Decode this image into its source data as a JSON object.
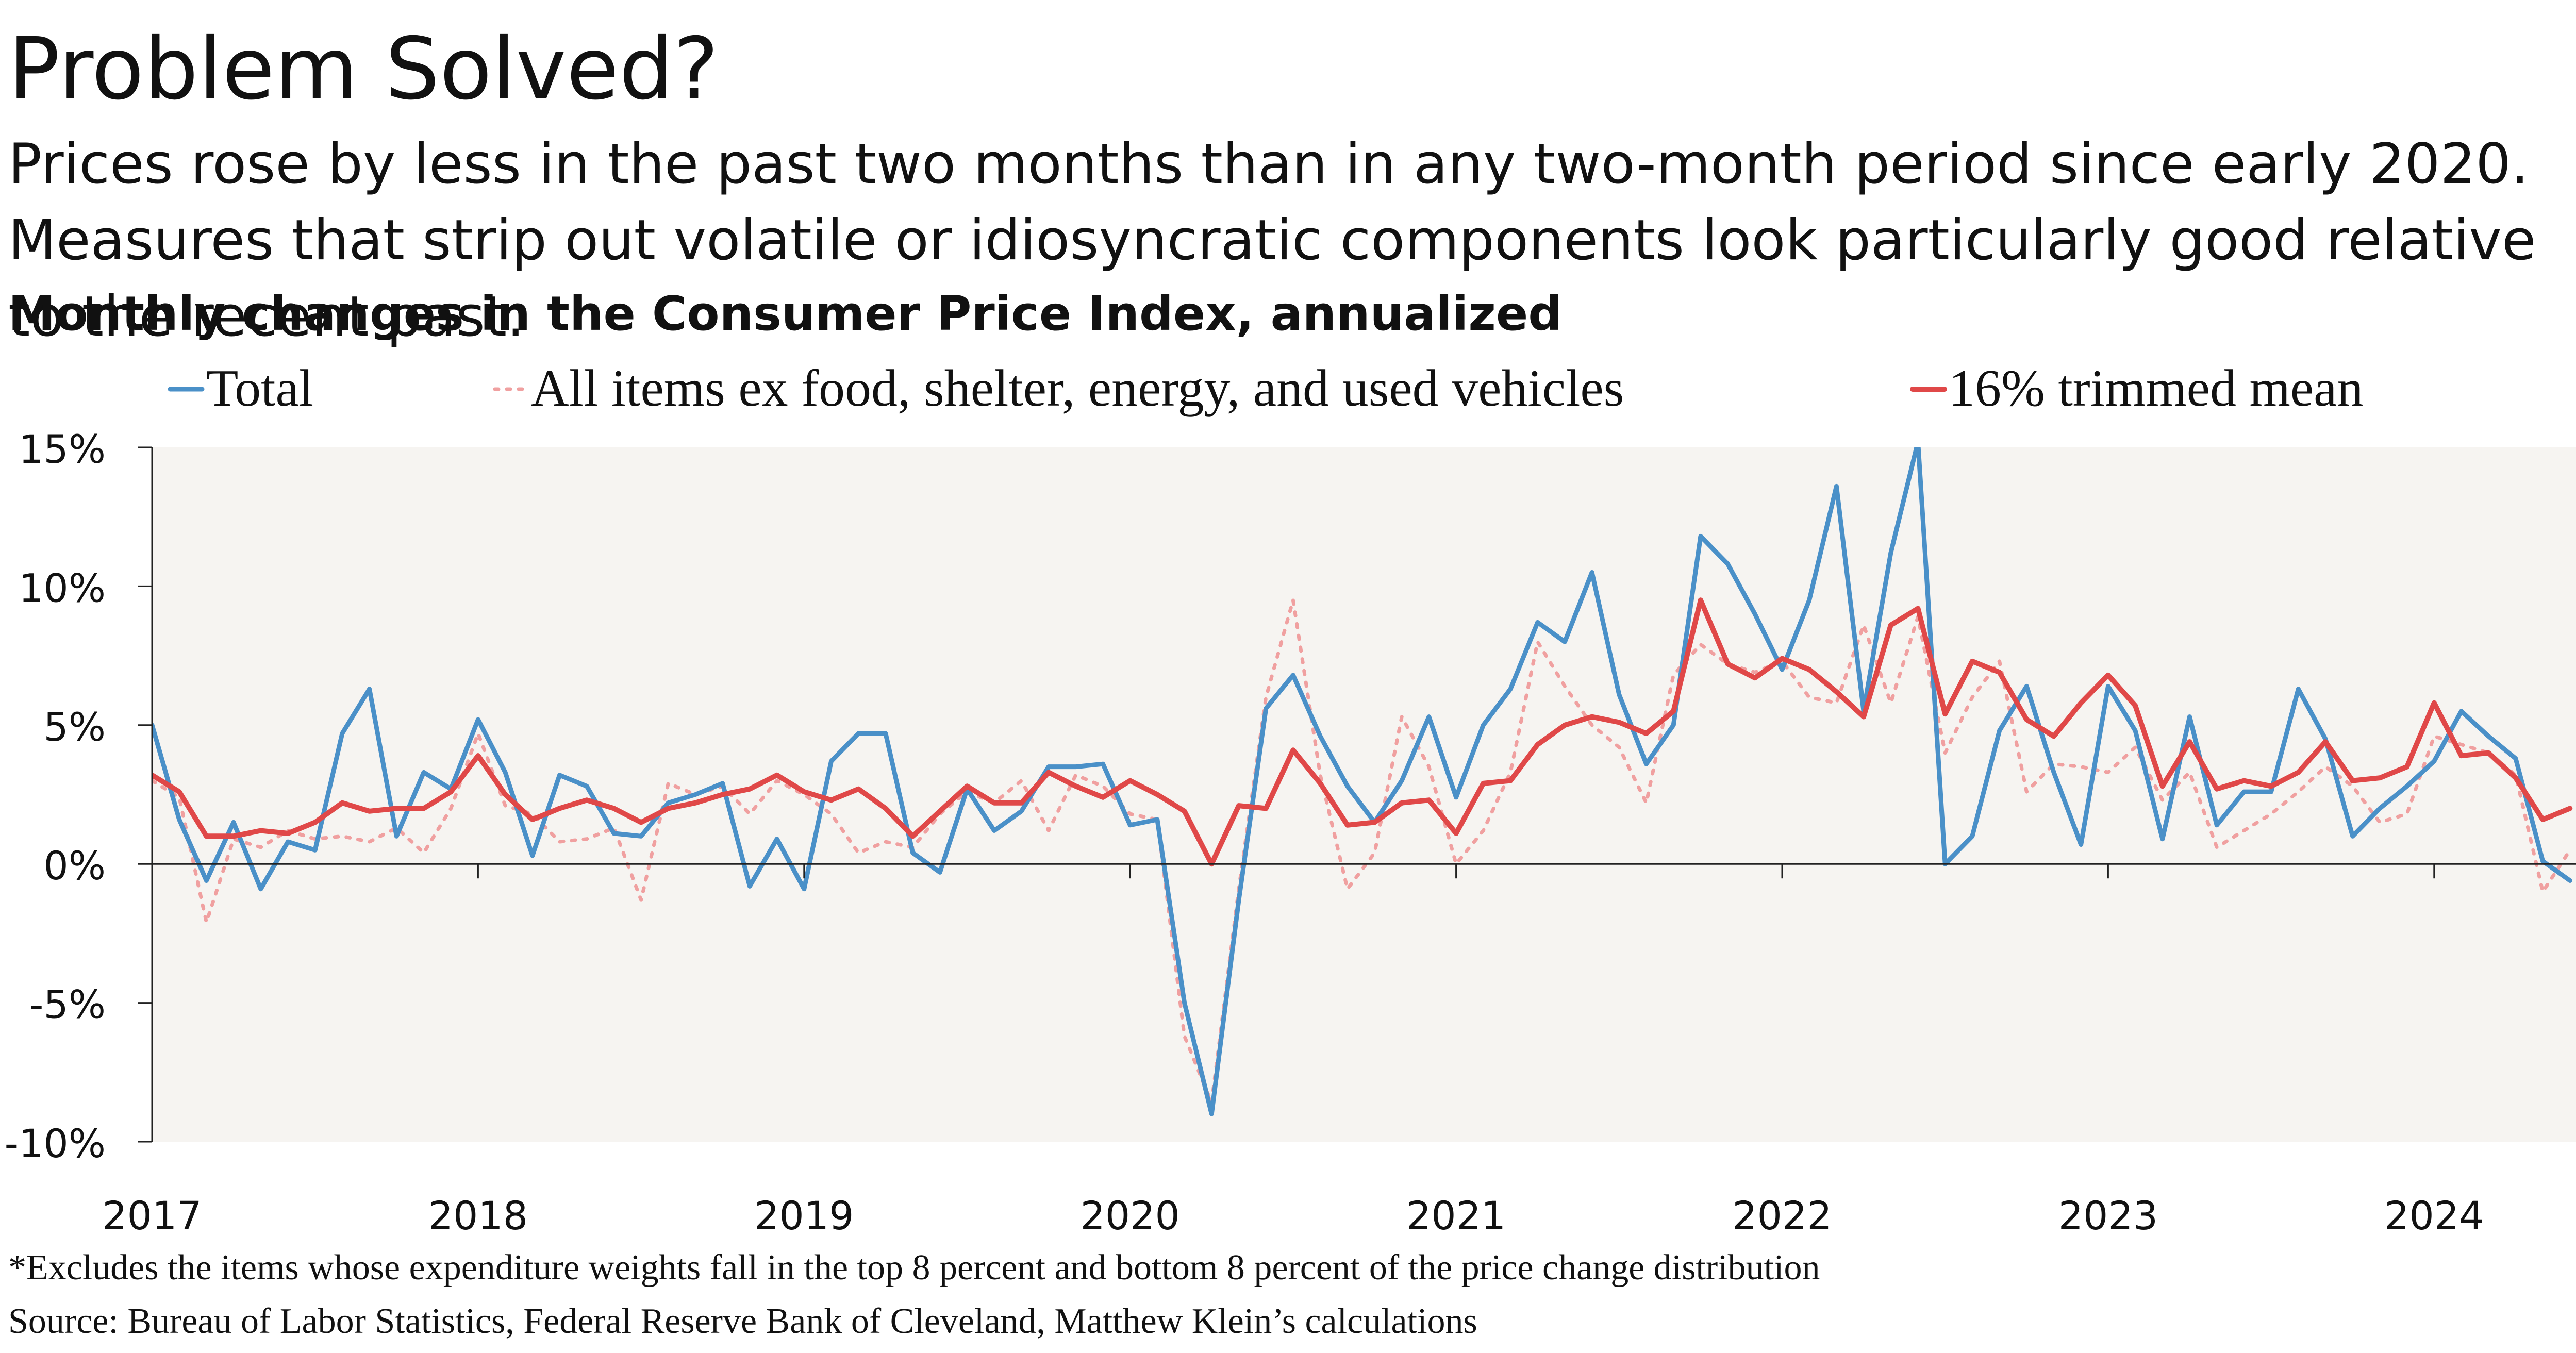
{
  "title": "Problem Solved?",
  "subtitle": "Prices rose by less in the past two months than in any two-month period since early 2020. Measures that strip out volatile or idiosyncratic components look particularly good relative to the recent past.",
  "chart_heading": "Monthly changes in the Consumer Price Index, annualized",
  "footnote": "*Excludes the items whose expenditure weights fall in the top 8 percent and bottom 8 percent of the price change distribution",
  "source": "Source: Bureau of Labor Statistics, Federal Reserve Bank of Cleveland, Matthew Klein’s calculations",
  "colors": {
    "plot_bg": "#f6f4f1",
    "axis": "#222222",
    "total": "#4a90c8",
    "ex_items": "#f0a0a0",
    "trimmed": "#e04848"
  },
  "chart_data": {
    "type": "line",
    "x_label_format": "year",
    "x_start": "2017-01",
    "ylim": [
      -10,
      15
    ],
    "yticks": [
      15,
      10,
      5,
      0,
      -5,
      -10
    ],
    "ytick_labels": [
      "15%",
      "10%",
      "5%",
      "0%",
      "-5%",
      "-10%"
    ],
    "xtick_labels": [
      "2017",
      "2018",
      "2019",
      "2020",
      "2021",
      "2022",
      "2023",
      "2024"
    ],
    "grid": false,
    "legend_position": "top",
    "months": [
      "2017-01",
      "2017-02",
      "2017-03",
      "2017-04",
      "2017-05",
      "2017-06",
      "2017-07",
      "2017-08",
      "2017-09",
      "2017-10",
      "2017-11",
      "2017-12",
      "2018-01",
      "2018-02",
      "2018-03",
      "2018-04",
      "2018-05",
      "2018-06",
      "2018-07",
      "2018-08",
      "2018-09",
      "2018-10",
      "2018-11",
      "2018-12",
      "2019-01",
      "2019-02",
      "2019-03",
      "2019-04",
      "2019-05",
      "2019-06",
      "2019-07",
      "2019-08",
      "2019-09",
      "2019-10",
      "2019-11",
      "2019-12",
      "2020-01",
      "2020-02",
      "2020-03",
      "2020-04",
      "2020-05",
      "2020-06",
      "2020-07",
      "2020-08",
      "2020-09",
      "2020-10",
      "2020-11",
      "2020-12",
      "2021-01",
      "2021-02",
      "2021-03",
      "2021-04",
      "2021-05",
      "2021-06",
      "2021-07",
      "2021-08",
      "2021-09",
      "2021-10",
      "2021-11",
      "2021-12",
      "2022-01",
      "2022-02",
      "2022-03",
      "2022-04",
      "2022-05",
      "2022-06",
      "2022-07",
      "2022-08",
      "2022-09",
      "2022-10",
      "2022-11",
      "2022-12",
      "2023-01",
      "2023-02",
      "2023-03",
      "2023-04",
      "2023-05",
      "2023-06",
      "2023-07",
      "2023-08",
      "2023-09",
      "2023-10",
      "2023-11",
      "2023-12",
      "2024-01",
      "2024-02",
      "2024-03",
      "2024-04",
      "2024-05",
      "2024-06"
    ],
    "series": [
      {
        "name": "Total",
        "style": "solid",
        "values": [
          5.0,
          1.6,
          -0.6,
          1.5,
          -0.9,
          0.8,
          0.5,
          4.7,
          6.3,
          1.0,
          3.3,
          2.7,
          5.2,
          3.3,
          0.3,
          3.2,
          2.8,
          1.1,
          1.0,
          2.2,
          2.5,
          2.9,
          -0.8,
          0.9,
          -0.9,
          3.7,
          4.7,
          4.7,
          0.4,
          -0.3,
          2.7,
          1.2,
          1.9,
          3.5,
          3.5,
          3.6,
          1.4,
          1.6,
          -5.0,
          -9.0,
          -1.3,
          5.6,
          6.8,
          4.6,
          2.8,
          1.5,
          3.0,
          5.3,
          2.4,
          5.0,
          6.3,
          8.7,
          8.0,
          10.5,
          6.1,
          3.6,
          5.0,
          11.8,
          10.8,
          9.0,
          7.0,
          9.5,
          13.6,
          5.5,
          11.2,
          15.2,
          0.0,
          1.0,
          4.8,
          6.4,
          3.3,
          0.7,
          6.4,
          4.8,
          0.9,
          5.3,
          1.4,
          2.6,
          2.6,
          6.3,
          4.5,
          1.0,
          2.0,
          2.8,
          3.7,
          5.5,
          4.6,
          3.8,
          0.1,
          -0.6
        ]
      },
      {
        "name": "All items ex food, shelter, energy, and used vehicles",
        "style": "dotted",
        "values": [
          3.0,
          2.4,
          -2.1,
          0.9,
          0.6,
          1.2,
          0.9,
          1.0,
          0.8,
          1.3,
          0.4,
          2.0,
          4.7,
          2.1,
          1.8,
          0.8,
          0.9,
          1.3,
          -1.3,
          2.9,
          2.5,
          2.8,
          1.8,
          3.0,
          2.5,
          1.8,
          0.4,
          0.8,
          0.6,
          1.8,
          2.6,
          2.2,
          3.0,
          1.2,
          3.2,
          2.8,
          1.8,
          1.6,
          -6.2,
          -8.6,
          -0.9,
          6.0,
          9.5,
          3.2,
          -0.9,
          0.4,
          5.3,
          3.5,
          0.0,
          1.2,
          3.3,
          8.0,
          6.4,
          5.0,
          4.2,
          2.2,
          6.8,
          7.9,
          7.2,
          6.9,
          7.3,
          6.0,
          5.8,
          8.6,
          5.8,
          8.9,
          4.0,
          6.0,
          7.3,
          2.6,
          3.6,
          3.5,
          3.3,
          4.2,
          2.3,
          3.3,
          0.6,
          1.2,
          1.8,
          2.6,
          3.5,
          2.8,
          1.5,
          1.8,
          4.6,
          4.3,
          4.0,
          3.2,
          -1.0,
          0.5
        ]
      },
      {
        "name": "16% trimmed mean",
        "style": "solid",
        "values": [
          3.2,
          2.6,
          1.0,
          1.0,
          1.2,
          1.1,
          1.5,
          2.2,
          1.9,
          2.0,
          2.0,
          2.6,
          3.9,
          2.5,
          1.6,
          2.0,
          2.3,
          2.0,
          1.5,
          2.0,
          2.2,
          2.5,
          2.7,
          3.2,
          2.6,
          2.3,
          2.7,
          2.0,
          1.0,
          1.9,
          2.8,
          2.2,
          2.2,
          3.3,
          2.8,
          2.4,
          3.0,
          2.5,
          1.9,
          0.0,
          2.1,
          2.0,
          4.1,
          2.9,
          1.4,
          1.5,
          2.2,
          2.3,
          1.1,
          2.9,
          3.0,
          4.3,
          5.0,
          5.3,
          5.1,
          4.7,
          5.5,
          9.5,
          7.2,
          6.7,
          7.4,
          7.0,
          6.2,
          5.3,
          8.6,
          9.2,
          5.4,
          7.3,
          6.9,
          5.2,
          4.6,
          5.8,
          6.8,
          5.7,
          2.8,
          4.4,
          2.7,
          3.0,
          2.8,
          3.3,
          4.4,
          3.0,
          3.1,
          3.5,
          5.8,
          3.9,
          4.0,
          3.1,
          1.6,
          2.0
        ]
      }
    ]
  }
}
